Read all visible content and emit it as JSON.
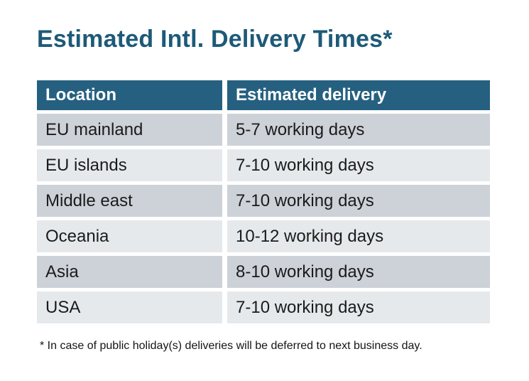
{
  "title": "Estimated Intl. Delivery Times*",
  "table": {
    "headers": {
      "location": "Location",
      "delivery": "Estimated delivery"
    },
    "rows": [
      {
        "location": "EU mainland",
        "delivery": "5-7 working days"
      },
      {
        "location": "EU islands",
        "delivery": "7-10 working days"
      },
      {
        "location": "Middle east",
        "delivery": "7-10 working days"
      },
      {
        "location": "Oceania",
        "delivery": "10-12 working days"
      },
      {
        "location": "Asia",
        "delivery": "8-10 working days"
      },
      {
        "location": "USA",
        "delivery": "7-10 working days"
      }
    ]
  },
  "footnote": "* In case of public holiday(s) deliveries will be deferred to next business day.",
  "colors": {
    "title_text": "#1d5a78",
    "header_bg": "#266080",
    "header_text": "#ffffff",
    "row_dark_bg": "#cdd1d8",
    "row_light_bg": "#e6e9ec",
    "cell_text": "#1b1b1b",
    "page_bg": "#ffffff"
  }
}
